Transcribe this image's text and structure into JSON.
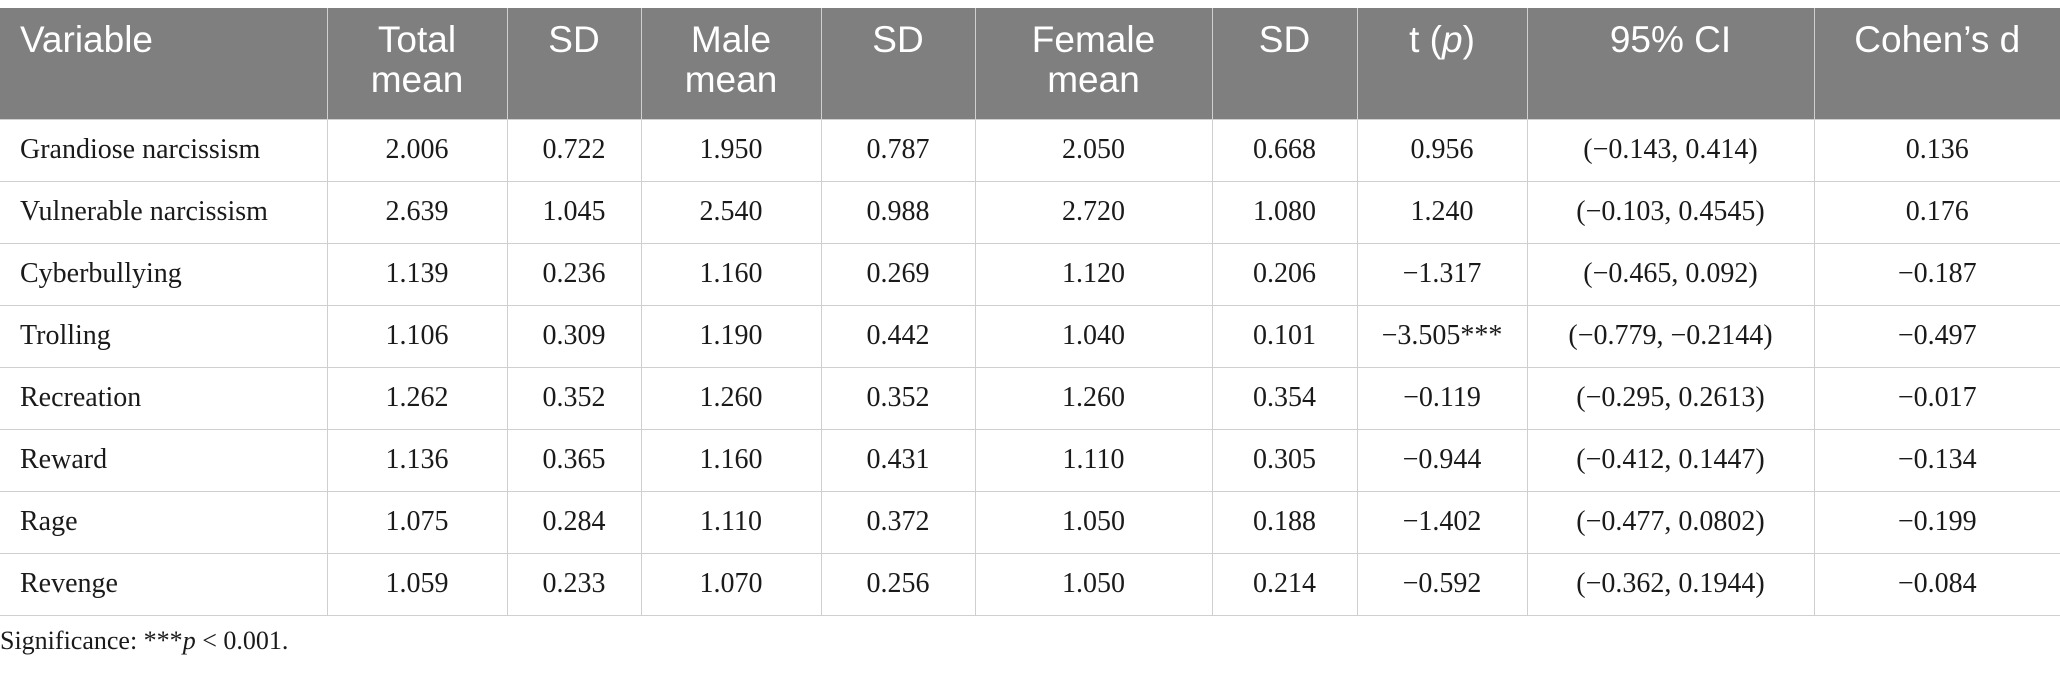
{
  "table": {
    "headers": [
      {
        "line1": "Variable",
        "line2": ""
      },
      {
        "line1": "Total",
        "line2": "mean"
      },
      {
        "line1": "SD",
        "line2": ""
      },
      {
        "line1": "Male",
        "line2": "mean"
      },
      {
        "line1": "SD",
        "line2": ""
      },
      {
        "line1": "Female",
        "line2": "mean"
      },
      {
        "line1": "SD",
        "line2": ""
      },
      {
        "line1": "t (",
        "italic": "p",
        "line1_end": ")"
      },
      {
        "line1": "95% CI",
        "line2": ""
      },
      {
        "line1": "Cohen’s d",
        "line2": ""
      }
    ],
    "rows": [
      [
        "Grandiose narcissism",
        "2.006",
        "0.722",
        "1.950",
        "0.787",
        "2.050",
        "0.668",
        "0.956",
        "(−0.143, 0.414)",
        "0.136"
      ],
      [
        "Vulnerable narcissism",
        "2.639",
        "1.045",
        "2.540",
        "0.988",
        "2.720",
        "1.080",
        "1.240",
        "(−0.103, 0.4545)",
        "0.176"
      ],
      [
        "Cyberbullying",
        "1.139",
        "0.236",
        "1.160",
        "0.269",
        "1.120",
        "0.206",
        "−1.317",
        "(−0.465, 0.092)",
        "−0.187"
      ],
      [
        "Trolling",
        "1.106",
        "0.309",
        "1.190",
        "0.442",
        "1.040",
        "0.101",
        "−3.505***",
        "(−0.779, −0.2144)",
        "−0.497"
      ],
      [
        "Recreation",
        "1.262",
        "0.352",
        "1.260",
        "0.352",
        "1.260",
        "0.354",
        "−0.119",
        "(−0.295, 0.2613)",
        "−0.017"
      ],
      [
        "Reward",
        "1.136",
        "0.365",
        "1.160",
        "0.431",
        "1.110",
        "0.305",
        "−0.944",
        "(−0.412, 0.1447)",
        "−0.134"
      ],
      [
        "Rage",
        "1.075",
        "0.284",
        "1.110",
        "0.372",
        "1.050",
        "0.188",
        "−1.402",
        "(−0.477, 0.0802)",
        "−0.199"
      ],
      [
        "Revenge",
        "1.059",
        "0.233",
        "1.070",
        "0.256",
        "1.050",
        "0.214",
        "−0.592",
        "(−0.362, 0.1944)",
        "−0.084"
      ]
    ]
  },
  "note": {
    "prefix": "Significance: ***",
    "italic": "p",
    "suffix": " < 0.001."
  },
  "colors": {
    "header_bg": "#7f7f7f",
    "header_text": "#ffffff",
    "grid": "#cfcfcf"
  }
}
